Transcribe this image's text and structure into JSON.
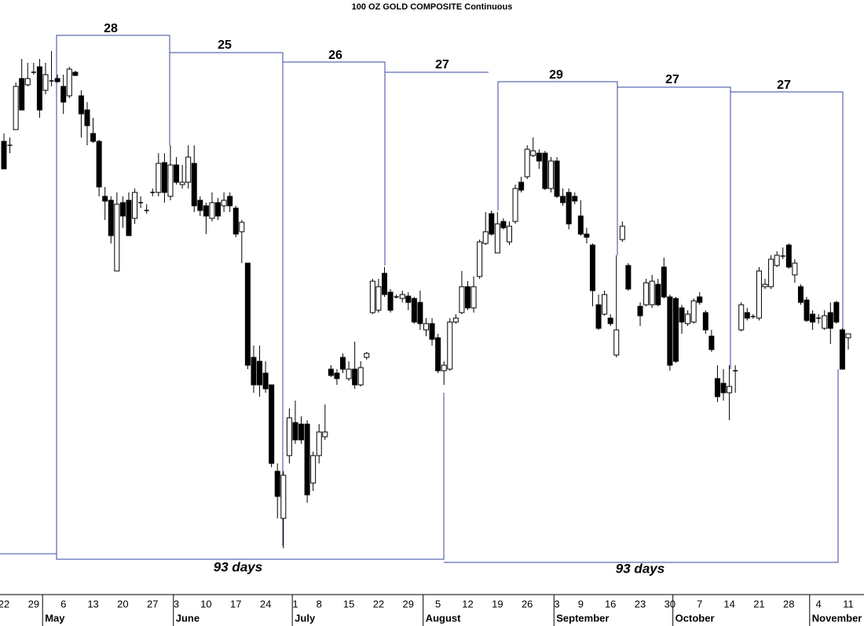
{
  "chart_data": {
    "type": "candlestick",
    "title": "100 OZ GOLD COMPOSITE Continuous",
    "ylim": [
      1170,
      1500
    ],
    "up_color": "#ffffff",
    "down_color": "#000000",
    "cycles": [
      28,
      25,
      26,
      27,
      29,
      27,
      27
    ],
    "annotations": [
      "93 days",
      "93 days"
    ],
    "categories": [
      "22",
      null,
      null,
      null,
      null,
      "29",
      null,
      null,
      null,
      null,
      "6",
      null,
      null,
      null,
      null,
      "13",
      null,
      null,
      null,
      null,
      "20",
      null,
      null,
      null,
      null,
      "27",
      null,
      null,
      null,
      "3",
      null,
      null,
      null,
      null,
      "10",
      null,
      null,
      null,
      null,
      "17",
      null,
      null,
      null,
      null,
      "24",
      null,
      null,
      null,
      null,
      "1",
      null,
      null,
      null,
      "8",
      null,
      null,
      null,
      null,
      "15",
      null,
      null,
      null,
      null,
      "22",
      null,
      null,
      null,
      null,
      "29",
      null,
      null,
      null,
      null,
      "5",
      null,
      null,
      null,
      null,
      "12",
      null,
      null,
      null,
      null,
      "19",
      null,
      null,
      null,
      null,
      "26",
      null,
      null,
      null,
      null,
      "3",
      null,
      null,
      null,
      "9",
      null,
      null,
      null,
      null,
      "16",
      null,
      null,
      null,
      null,
      "23",
      null,
      null,
      null,
      null,
      "30",
      null,
      null,
      null,
      null,
      "7",
      null,
      null,
      null,
      null,
      "14",
      null,
      null,
      null,
      null,
      "21",
      null,
      null,
      null,
      null,
      "28",
      null,
      null,
      null,
      null,
      "4",
      null,
      null,
      null,
      null,
      "11"
    ],
    "months": [
      null,
      null,
      null,
      null,
      null,
      null,
      null,
      "May",
      null,
      null,
      null,
      null,
      null,
      null,
      null,
      null,
      null,
      null,
      null,
      null,
      null,
      null,
      null,
      null,
      null,
      null,
      null,
      null,
      null,
      "June",
      null,
      null,
      null,
      null,
      null,
      null,
      null,
      null,
      null,
      null,
      null,
      null,
      null,
      null,
      null,
      null,
      null,
      null,
      null,
      "July",
      null,
      null,
      null,
      null,
      null,
      null,
      null,
      null,
      null,
      null,
      null,
      null,
      null,
      null,
      null,
      null,
      null,
      null,
      null,
      null,
      null,
      "August",
      null,
      null,
      null,
      null,
      null,
      null,
      null,
      null,
      null,
      null,
      null,
      null,
      null,
      null,
      null,
      null,
      null,
      null,
      null,
      null,
      null,
      "September",
      null,
      null,
      null,
      null,
      null,
      null,
      null,
      null,
      null,
      null,
      null,
      null,
      null,
      null,
      null,
      null,
      null,
      null,
      null,
      "October",
      null,
      null,
      null,
      null,
      null,
      null,
      null,
      null,
      null,
      null,
      null,
      null,
      null,
      null,
      null,
      null,
      null,
      null,
      null,
      null,
      null,
      null,
      "November",
      null,
      null,
      null,
      null,
      null,
      null
    ],
    "open": [
      1440,
      1437.5,
      1447.5,
      1480,
      1476,
      1484,
      1487.5,
      1472.5,
      1478.5,
      1480,
      1475,
      1469,
      1484,
      1469,
      1460,
      1445,
      1440,
      1405,
      1402.5,
      1357.5,
      1401,
      1402.5,
      1391,
      1401,
      1396,
      1407.5,
      1407.5,
      1426.5,
      1405,
      1425,
      1412.5,
      1414,
      1426,
      1402.5,
      1399,
      1391,
      1401,
      1399,
      1405,
      1397.5,
      1382.5,
      1362.5,
      1302.5,
      1300,
      1292.5,
      1285,
      1230,
      1200,
      1240,
      1261,
      1260,
      1260,
      1222.5,
      1240,
      1252,
      1295,
      1292.5,
      1302.5,
      1289,
      1295,
      1285,
      1302.5,
      1331,
      1332.5,
      1356,
      1344,
      1341,
      1340,
      1341.5,
      1340,
      1337.5,
      1320,
      1324,
      1315,
      1294,
      1295,
      1325,
      1331,
      1347.5,
      1334,
      1354,
      1375,
      1394,
      1369,
      1389,
      1376,
      1389,
      1414,
      1417.5,
      1431,
      1432.5,
      1432.5,
      1410,
      1427.5,
      1405,
      1407.5,
      1405,
      1392.5,
      1381,
      1374,
      1336,
      1330,
      1327.5,
      1304,
      1377.5,
      1361,
      null,
      1335,
      1336,
      1336,
      1349,
      1360,
      1341,
      1340,
      1334,
      1324,
      1325,
      1341,
      1331,
      1316,
      1289,
      1286,
      1280,
      1294,
      1320,
      1331,
      1328.5,
      1327.5,
      1347.5,
      1347.5,
      1361,
      1367,
      1374,
      1355,
      1347.5,
      1339,
      1330,
      1327.5,
      1321,
      1331,
      1337.5,
      1320,
      1315
    ],
    "high": [
      1445,
      1442.5,
      1477.5,
      1492.5,
      1490,
      1490,
      1492.5,
      1490,
      1497.5,
      1482.5,
      1482.5,
      1487.5,
      1485,
      1472.5,
      1465,
      1455,
      1441,
      1411,
      1405,
      1407.5,
      1405,
      1407.5,
      1410,
      1405,
      1400,
      1410,
      1432.5,
      1432.5,
      1437.5,
      1430,
      1425,
      1437.5,
      1437.5,
      1405,
      1401,
      1407.5,
      1404,
      1407.5,
      1407.5,
      1399,
      1390,
      1362.5,
      1310,
      1310,
      1300,
      1285,
      1235,
      1230,
      1270,
      1275,
      1265,
      1262.5,
      1242.5,
      1260,
      1272.5,
      1297.5,
      1295,
      1305,
      1300,
      1312.5,
      1300,
      1306,
      1352.5,
      1352.5,
      1360,
      1346,
      1342.5,
      1345,
      1344,
      1341,
      1345,
      1327.5,
      1327.5,
      1317.5,
      1300,
      1327.5,
      1330,
      1357.5,
      1351,
      1354,
      1377.5,
      1395,
      1396,
      1395,
      1391,
      1389,
      1412.5,
      1417.5,
      1437.5,
      1442.5,
      1435,
      1434,
      1430,
      1430,
      1410,
      1410,
      1407.5,
      1402.5,
      1385,
      1375,
      1342.5,
      1345,
      1330,
      1367.5,
      1389,
      1362.5,
      null,
      1337.5,
      1352.5,
      1355,
      1352.5,
      1366,
      1342.5,
      1341,
      1336,
      1332.5,
      1340,
      1344,
      1332.5,
      1320,
      1297.5,
      1295,
      1297.5,
      1297.5,
      1337.5,
      1334,
      1330,
      1360,
      1352.5,
      1367.5,
      1370,
      1372.5,
      1375,
      1365,
      1349,
      1341,
      1332.5,
      1330,
      1332.5,
      1337.5,
      1338.5,
      1321,
      1317.5
    ],
    "low": [
      1422.5,
      1432.5,
      1447.5,
      1460,
      1475,
      1482.5,
      1455,
      1470,
      1475,
      1477.5,
      1457.5,
      1467.5,
      1481.5,
      1442.5,
      1437.5,
      1439,
      1405,
      1390,
      1375,
      1357.5,
      1385,
      1380,
      1387.5,
      1397.5,
      1394,
      1405,
      1405,
      1401,
      1402.5,
      1412.5,
      1410,
      1410,
      1395,
      1392.5,
      1381,
      1389,
      1390,
      1395,
      1395,
      1379,
      1362.5,
      1295,
      1280,
      1277.5,
      1280,
      1232.5,
      1200,
      1181,
      1235,
      1247.5,
      1247.5,
      1210,
      1217.5,
      1235,
      1250,
      1290,
      1285,
      1292.5,
      1287.5,
      1282.5,
      1284,
      1301,
      1330,
      1331,
      1341,
      1331,
      1340,
      1337.5,
      1332.5,
      1324,
      1320,
      1316,
      1310,
      1292.5,
      1285,
      1294,
      1324,
      1330,
      1332.5,
      1331,
      1352.5,
      1374,
      1380,
      1369,
      1384,
      1374,
      1387.5,
      1407.5,
      1416,
      1430,
      1422.5,
      1409,
      1407.5,
      1404,
      1399,
      1384,
      1400,
      1380,
      1375,
      1335,
      1320,
      1329,
      1322.5,
      1302.5,
      1376,
      1345,
      null,
      1322.5,
      1335,
      1334,
      1335,
      1340,
      1294,
      1299,
      1317.5,
      1322.5,
      1324,
      1336,
      1317.5,
      1306,
      1274,
      1275,
      1262.5,
      1280,
      1319,
      1326,
      1327,
      1326,
      1346,
      1346,
      1360,
      1365,
      1359,
      1350,
      1336,
      1325,
      1320,
      1324,
      1320,
      1311,
      1324,
      1295,
      1307.5
    ],
    "close": [
      1422.5,
      1437.5,
      1475,
      1460,
      1480,
      1484,
      1460,
      1482.5,
      1478.5,
      1478,
      1465,
      1486,
      1482,
      1457.5,
      1450,
      1440,
      1411,
      1402,
      1380,
      1400,
      1392.5,
      1380,
      1407.5,
      1401,
      1396,
      1407.5,
      1426,
      1407.5,
      1425,
      1414,
      1414,
      1430,
      1399,
      1396,
      1392.5,
      1401,
      1392.5,
      1402.5,
      1399,
      1381,
      1388.5,
      1297.5,
      1285,
      1285,
      1282.5,
      1235,
      1214,
      1227.5,
      1264,
      1250,
      1250,
      1215,
      1240,
      1255,
      1255,
      1291,
      1289,
      1295,
      1295,
      1285,
      1296,
      1305,
      1351,
      1347.5,
      1342.5,
      1332.5,
      1341,
      1342.5,
      1337.5,
      1325,
      1324,
      1324,
      1314,
      1294,
      1297.5,
      1325,
      1327.5,
      1347.5,
      1334,
      1347.5,
      1376,
      1382.5,
      1381,
      1387.5,
      1385,
      1386,
      1410,
      1409,
      1435,
      1434,
      1427.5,
      1410,
      1427.5,
      1405,
      1401,
      1387.5,
      1402,
      1381,
      1379,
      1345,
      1321,
      1342.5,
      1324,
      1320,
      1386,
      1346,
      null,
      1329,
      1350,
      1351,
      1336,
      1341,
      1297.5,
      1300,
      1325,
      1330,
      1338.5,
      1337.5,
      1320,
      1307.5,
      1277.5,
      1280,
      1284,
      1294,
      1336,
      1327.5,
      1328.5,
      1357.5,
      1349,
      1365,
      1367.5,
      1367,
      1360,
      1362.5,
      1337.5,
      1326,
      1325,
      1327.5,
      1329,
      1321,
      1325,
      1295,
      1317.5
    ]
  }
}
